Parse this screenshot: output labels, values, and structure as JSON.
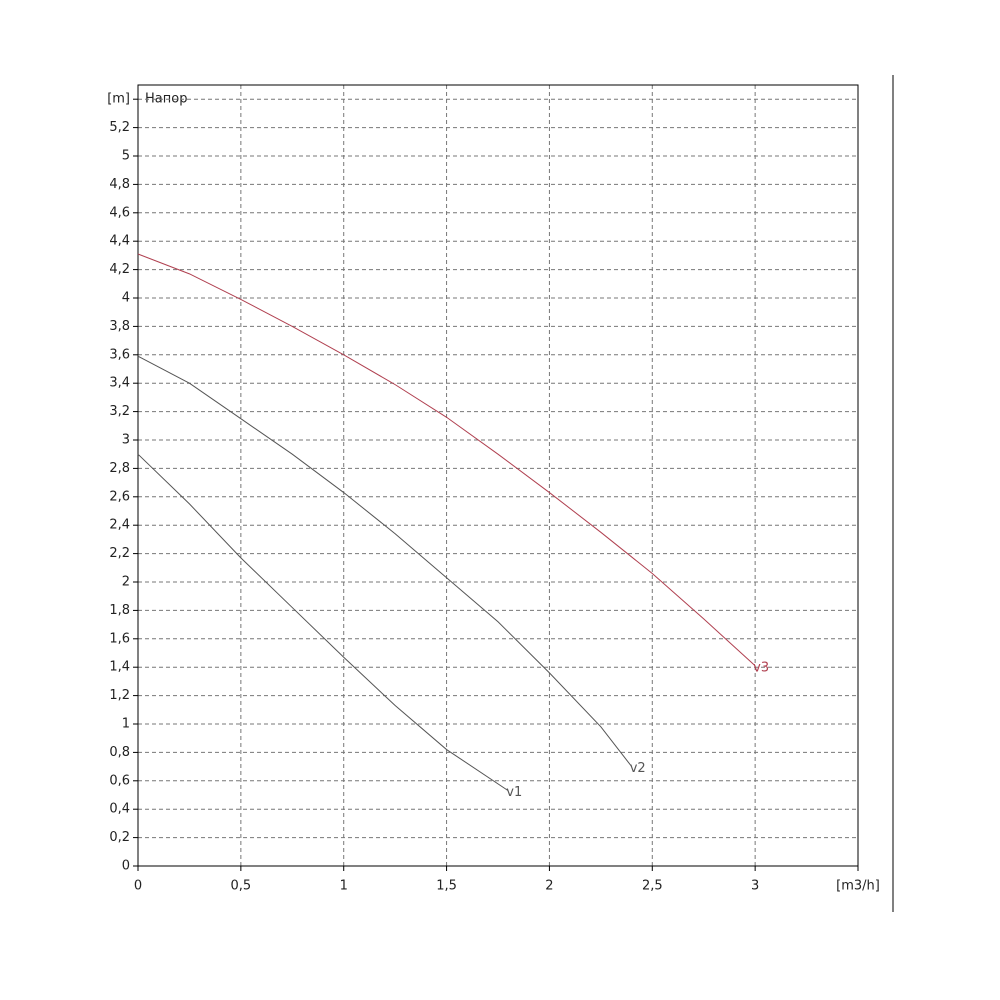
{
  "chart_data": {
    "type": "line",
    "annotation": "Напор",
    "xlim": [
      0,
      3.5
    ],
    "xticks": [
      0,
      {
        "value": 0.5,
        "label": "0,5"
      },
      1,
      {
        "value": 1.5,
        "label": "1,5"
      },
      2,
      {
        "value": 2.5,
        "label": "2,5"
      },
      3,
      {
        "value": 3.5,
        "label": "[m3/h]"
      }
    ],
    "ylim": [
      0,
      5.5
    ],
    "yticks": [
      0,
      {
        "value": 0.2,
        "label": "0,2"
      },
      {
        "value": 0.4,
        "label": "0,4"
      },
      {
        "value": 0.6,
        "label": "0,6"
      },
      {
        "value": 0.8,
        "label": "0,8"
      },
      1,
      {
        "value": 1.2,
        "label": "1,2"
      },
      {
        "value": 1.4,
        "label": "1,4"
      },
      {
        "value": 1.6,
        "label": "1,6"
      },
      {
        "value": 1.8,
        "label": "1,8"
      },
      2,
      {
        "value": 2.2,
        "label": "2,2"
      },
      {
        "value": 2.4,
        "label": "2,4"
      },
      {
        "value": 2.6,
        "label": "2,6"
      },
      {
        "value": 2.8,
        "label": "2,8"
      },
      3,
      {
        "value": 3.2,
        "label": "3,2"
      },
      {
        "value": 3.4,
        "label": "3,4"
      },
      {
        "value": 3.6,
        "label": "3,6"
      },
      {
        "value": 3.8,
        "label": "3,8"
      },
      4,
      {
        "value": 4.2,
        "label": "4,2"
      },
      {
        "value": 4.4,
        "label": "4,4"
      },
      {
        "value": 4.6,
        "label": "4,6"
      },
      {
        "value": 4.8,
        "label": "4,8"
      },
      5,
      {
        "value": 5.2,
        "label": "5,2"
      },
      {
        "value": 5.4,
        "label": "[m]"
      }
    ],
    "grid": true,
    "series": [
      {
        "name": "v1",
        "color": "#555555",
        "x": [
          0,
          0.25,
          0.5,
          0.75,
          1,
          1.25,
          1.5,
          1.8
        ],
        "values": [
          2.9,
          2.55,
          2.17,
          1.82,
          1.47,
          1.13,
          0.82,
          0.53
        ]
      },
      {
        "name": "v2",
        "color": "#555555",
        "x": [
          0,
          0.25,
          0.5,
          0.75,
          1,
          1.25,
          1.5,
          1.75,
          2,
          2.25,
          2.4
        ],
        "values": [
          3.59,
          3.4,
          3.15,
          2.9,
          2.63,
          2.34,
          2.03,
          1.72,
          1.36,
          0.98,
          0.7
        ]
      },
      {
        "name": "v3",
        "color": "#b04050",
        "x": [
          0,
          0.25,
          0.5,
          0.75,
          1,
          1.25,
          1.5,
          1.75,
          2,
          2.25,
          2.5,
          2.75,
          3
        ],
        "values": [
          4.31,
          4.17,
          3.99,
          3.8,
          3.6,
          3.39,
          3.16,
          2.9,
          2.63,
          2.35,
          2.06,
          1.74,
          1.41
        ]
      }
    ]
  }
}
